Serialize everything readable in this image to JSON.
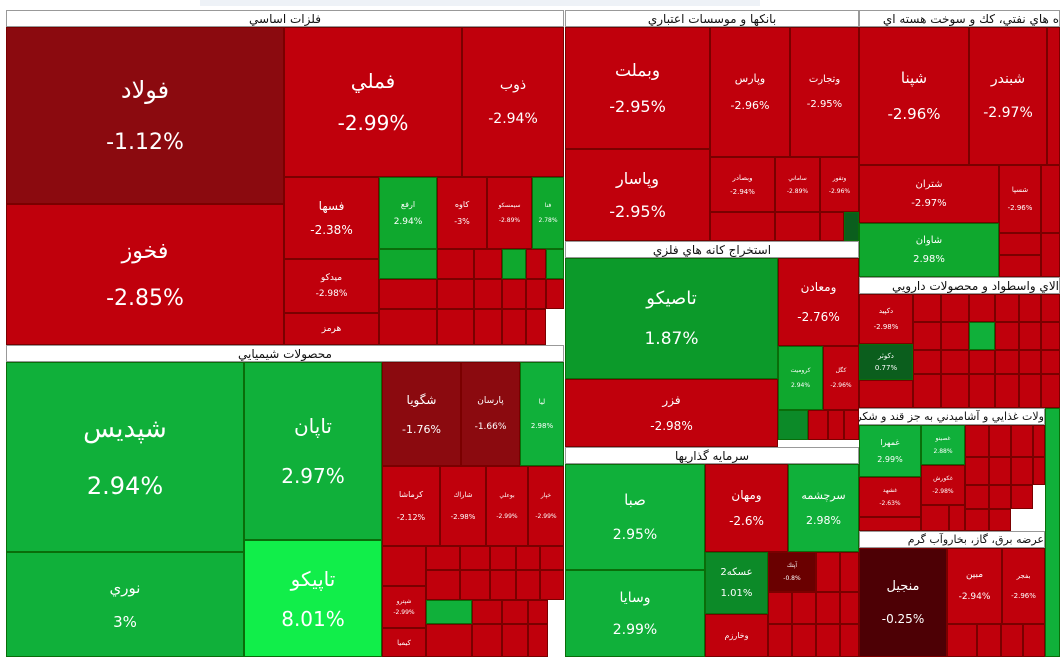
{
  "sectors": [
    {
      "id": "s1",
      "title": "فلزات اساسي"
    },
    {
      "id": "s2",
      "title": "بانكها و موسسات اعتباري"
    },
    {
      "id": "s3",
      "title": "ه هاي نفتي، كك و سوخت هسته اي"
    },
    {
      "id": "s4",
      "title": "محصولات شيميايي"
    },
    {
      "id": "s5",
      "title": "استخراج كانه هاي فلزي"
    },
    {
      "id": "s6",
      "title": "سرمايه گذاريها"
    },
    {
      "id": "s7",
      "title": "الاي واسطواد و محصولات دارويي"
    },
    {
      "id": "s8",
      "title": "ولات غذايي و آشاميدني به جز قند و شكر"
    },
    {
      "id": "s9",
      "title": "عرضه برق، گاز، بخاروآب گرم"
    }
  ],
  "tiles": [
    {
      "name": "فولاد",
      "change": "-1.12%",
      "color": "#8b0a0f"
    },
    {
      "name": "فخوز",
      "change": "-2.85%",
      "color": "#c0000c"
    },
    {
      "name": "فملي",
      "change": "-2.99%",
      "color": "#c0000c"
    },
    {
      "name": "ذوب",
      "change": "-2.94%",
      "color": "#c0000c"
    },
    {
      "name": "فسها",
      "change": "-2.38%",
      "color": "#c0000c"
    },
    {
      "name": "ميدكو",
      "change": "-2.98%",
      "color": "#c0000c"
    },
    {
      "name": "هرمز",
      "change": "",
      "color": "#c0000c"
    },
    {
      "name": "ارفع",
      "change": "2.94%",
      "color": "#0fa82e"
    },
    {
      "name": "كاوه",
      "change": "-3%",
      "color": "#c0000c"
    },
    {
      "name": "سيمسكو",
      "change": "-2.89%",
      "color": "#c0000c"
    },
    {
      "name": "فنا",
      "change": "2.78%",
      "color": "#0fa82e"
    },
    {
      "name": "وبملت",
      "change": "-2.95%",
      "color": "#c0000c"
    },
    {
      "name": "وپارس",
      "change": "-2.96%",
      "color": "#c0000c"
    },
    {
      "name": "وتجارت",
      "change": "-2.95%",
      "color": "#c0000c"
    },
    {
      "name": "وپاسار",
      "change": "-2.95%",
      "color": "#c0000c"
    },
    {
      "name": "وبصادر",
      "change": "-2.94%",
      "color": "#c0000c"
    },
    {
      "name": "ساماني",
      "change": "-2.89%",
      "color": "#c0000c"
    },
    {
      "name": "وتفور",
      "change": "-2.96%",
      "color": "#c0000c"
    },
    {
      "name": "شپنا",
      "change": "-2.96%",
      "color": "#c0000c"
    },
    {
      "name": "شبندر",
      "change": "-2.97%",
      "color": "#c0000c"
    },
    {
      "name": "شتران",
      "change": "-2.97%",
      "color": "#c0000c"
    },
    {
      "name": "شسپا",
      "change": "-2.96%",
      "color": "#c0000c"
    },
    {
      "name": "شاوان",
      "change": "2.98%",
      "color": "#0fa82e"
    },
    {
      "name": "شپديس",
      "change": "2.94%",
      "color": "#10b03a"
    },
    {
      "name": "تاپان",
      "change": "2.97%",
      "color": "#10b03a"
    },
    {
      "name": "شگويا",
      "change": "-1.76%",
      "color": "#8b0a0f"
    },
    {
      "name": "پارسان",
      "change": "-1.66%",
      "color": "#8b0a0f"
    },
    {
      "name": "ليا",
      "change": "2.98%",
      "color": "#10b03a"
    },
    {
      "name": "نوري",
      "change": "3%",
      "color": "#10b03a"
    },
    {
      "name": "تاپيكو",
      "change": "8.01%",
      "color": "#11ee4a"
    },
    {
      "name": "كرماشا",
      "change": "-2.12%",
      "color": "#c0000c"
    },
    {
      "name": "شاراك",
      "change": "-2.98%",
      "color": "#c0000c"
    },
    {
      "name": "بوعلي",
      "change": "-2.99%",
      "color": "#c0000c"
    },
    {
      "name": "خپار",
      "change": "-2.99%",
      "color": "#c0000c"
    },
    {
      "name": "تاصيكو",
      "change": "1.87%",
      "color": "#0c9a2a"
    },
    {
      "name": "ومعادن",
      "change": "-2.76%",
      "color": "#c0000c"
    },
    {
      "name": "فزر",
      "change": "-2.98%",
      "color": "#c0000c"
    },
    {
      "name": "كروميت",
      "change": "2.94%",
      "color": "#0fa82e"
    },
    {
      "name": "كگل",
      "change": "-2.96%",
      "color": "#c0000c"
    },
    {
      "name": "صبا",
      "change": "2.95%",
      "color": "#10b03a"
    },
    {
      "name": "ومهان",
      "change": "-2.6%",
      "color": "#c0000c"
    },
    {
      "name": "سرچشمه",
      "change": "2.98%",
      "color": "#10b03a"
    },
    {
      "name": "وسايا",
      "change": "2.99%",
      "color": "#10b03a"
    },
    {
      "name": "عسكه2",
      "change": "1.01%",
      "color": "#0c8a28"
    },
    {
      "name": "آپتك",
      "change": "-0.8%",
      "color": "#6a0000"
    },
    {
      "name": "وخارزم",
      "change": "",
      "color": "#c0000c"
    },
    {
      "name": "دكپيد",
      "change": "-2.98%",
      "color": "#c0000c"
    },
    {
      "name": "دكوثر",
      "change": "0.77%",
      "color": "#0b5e1d"
    },
    {
      "name": "غمهرا",
      "change": "2.99%",
      "color": "#10b03a"
    },
    {
      "name": "غصينو",
      "change": "2.88%",
      "color": "#10b03a"
    },
    {
      "name": "غكورش",
      "change": "-2.98%",
      "color": "#c0000c"
    },
    {
      "name": "غشهد",
      "change": "-2.63%",
      "color": "#c0000c"
    },
    {
      "name": "منجيل",
      "change": "-0.25%",
      "color": "#4d0005"
    },
    {
      "name": "مبين",
      "change": "-2.94%",
      "color": "#c0000c"
    },
    {
      "name": "بفجر",
      "change": "-2.96%",
      "color": "#c0000c"
    },
    {
      "name": "شكستر",
      "change": "",
      "color": "#c0000c"
    },
    {
      "name": "كيميا",
      "change": "-2.07%",
      "color": "#c0000c"
    },
    {
      "name": "شپترو",
      "change": "-2.99%",
      "color": "#c0000c"
    }
  ]
}
